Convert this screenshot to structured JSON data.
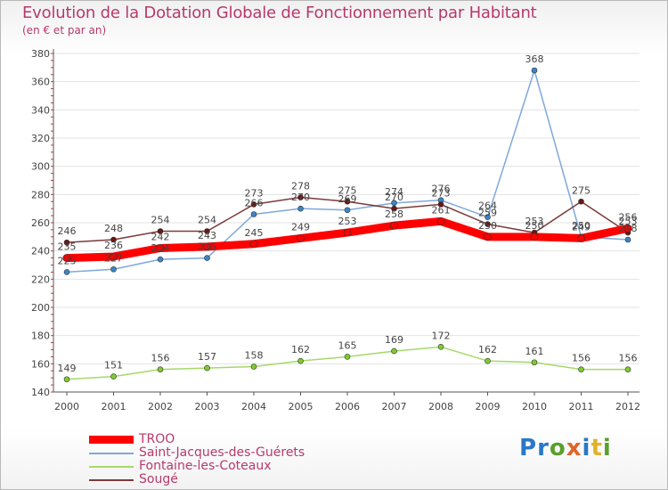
{
  "title": "Evolution de la Dotation Globale de Fonctionnement par Habitant",
  "subtitle": "(en € et par an)",
  "logo": {
    "text": "Proxiti",
    "letter_colors": [
      "#2a77c9",
      "#2a77c9",
      "#5aa02c",
      "#e0652a",
      "#2a77c9",
      "#e0b22a",
      "#5aa02c"
    ]
  },
  "chart_data": {
    "type": "line",
    "title": "Evolution de la Dotation Globale de Fonctionnement par Habitant",
    "subtitle": "(en € et par an)",
    "x": [
      "2000",
      "2001",
      "2002",
      "2003",
      "2004",
      "2005",
      "2006",
      "2007",
      "2008",
      "2009",
      "2010",
      "2011",
      "2012"
    ],
    "ylim": [
      140,
      380
    ],
    "yticks": [
      140,
      160,
      180,
      200,
      220,
      240,
      260,
      280,
      300,
      320,
      340,
      360,
      380
    ],
    "legend_position": "bottom-left",
    "series": [
      {
        "name": "Fontaine-les-Coteaux",
        "color": "#a6d96a",
        "marker": "#7dcc2e",
        "width": 1.5,
        "values": [
          149,
          151,
          156,
          157,
          158,
          162,
          165,
          169,
          172,
          162,
          161,
          156,
          156
        ]
      },
      {
        "name": "Saint-Jacques-des-Guérets",
        "color": "#7fa8d8",
        "marker": "#3a86c8",
        "width": 1.5,
        "values": [
          225,
          227,
          234,
          235,
          266,
          270,
          269,
          274,
          276,
          264,
          368,
          250,
          248
        ]
      },
      {
        "name": "Sougé",
        "color": "#7a3b3b",
        "marker": "#6b1515",
        "width": 1.5,
        "values": [
          246,
          248,
          254,
          254,
          273,
          278,
          275,
          270,
          273,
          259,
          253,
          275,
          253
        ]
      },
      {
        "name": "TROO",
        "color": "#ff0000",
        "marker": "#ff0000",
        "width": 9,
        "values": [
          235,
          236,
          242,
          243,
          245,
          249,
          253,
          258,
          261,
          250,
          250,
          249,
          256
        ]
      }
    ],
    "legend": [
      "TROO",
      "Saint-Jacques-des-Guérets",
      "Fontaine-les-Coteaux",
      "Sougé"
    ]
  }
}
